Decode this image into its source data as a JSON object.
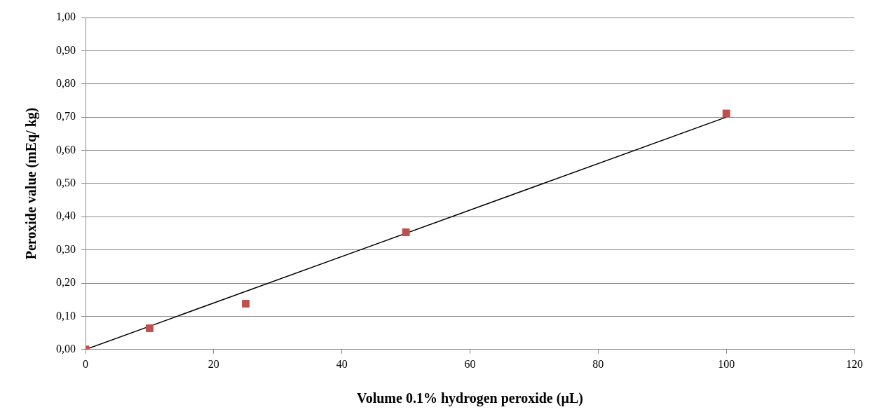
{
  "chart_data": {
    "type": "scatter",
    "xlabel": "Volume 0.1% hydrogen peroxide (µL)",
    "ylabel": "Peroxide value (mEq/ kg)",
    "series": [
      {
        "color": "#c0504d",
        "marker": "square",
        "x": [
          0,
          10,
          25,
          50,
          100
        ],
        "values": [
          0,
          0.064,
          0.138,
          0.353,
          0.711
        ]
      },
      {
        "type": "line",
        "color": "#000000",
        "marker": "none",
        "line_style": "solid",
        "x": [
          0,
          100
        ],
        "values": [
          0,
          0.7
        ]
      }
    ],
    "xlim": [
      0,
      120
    ],
    "xticks": [
      0,
      20,
      40,
      60,
      80,
      100,
      120
    ],
    "ylim": [
      0,
      1
    ],
    "yticks": [
      {
        "value": 0,
        "label": "0,00"
      },
      {
        "value": 0.1,
        "label": "0,10"
      },
      {
        "value": 0.2,
        "label": "0,20"
      },
      {
        "value": 0.3,
        "label": "0,30"
      },
      {
        "value": 0.4,
        "label": "0,40"
      },
      {
        "value": 0.5,
        "label": "0,50"
      },
      {
        "value": 0.6,
        "label": "0,60"
      },
      {
        "value": 0.7,
        "label": "0,70"
      },
      {
        "value": 0.8,
        "label": "0,80"
      },
      {
        "value": 0.9,
        "label": "0,90"
      },
      {
        "value": 1,
        "label": "1,00"
      }
    ],
    "grid": "y",
    "legend": false
  }
}
